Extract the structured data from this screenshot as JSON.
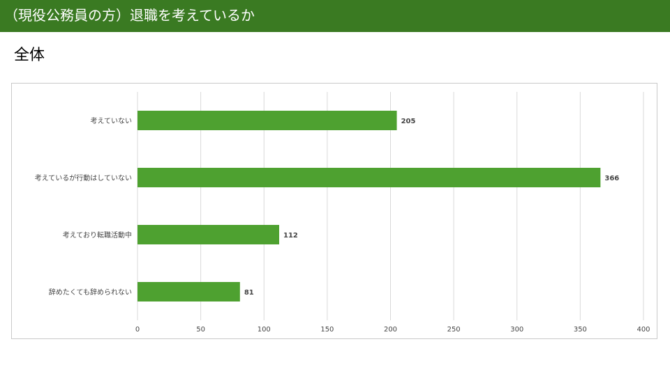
{
  "header": {
    "title": "（現役公務員の方）退職を考えているか"
  },
  "section": {
    "title": "全体"
  },
  "colors": {
    "banner": "#3a7a22",
    "bar": "#4ea130",
    "grid": "#d9d9d9",
    "label": "#444444"
  },
  "chart_data": {
    "type": "bar",
    "orientation": "horizontal",
    "title": "",
    "xlabel": "",
    "ylabel": "",
    "categories": [
      "考えていない",
      "考えているが行動はしていない",
      "考えており転職活動中",
      "辞めたくても辞められない"
    ],
    "values": [
      205,
      366,
      112,
      81
    ],
    "data_labels": [
      "205",
      "366",
      "112",
      "81"
    ],
    "xlim": [
      0,
      400
    ],
    "ticks": [
      0,
      50,
      100,
      150,
      200,
      250,
      300,
      350,
      400
    ],
    "tick_labels": [
      "0",
      "50",
      "100",
      "150",
      "200",
      "250",
      "300",
      "350",
      "400"
    ],
    "grid": true,
    "legend": "none"
  }
}
